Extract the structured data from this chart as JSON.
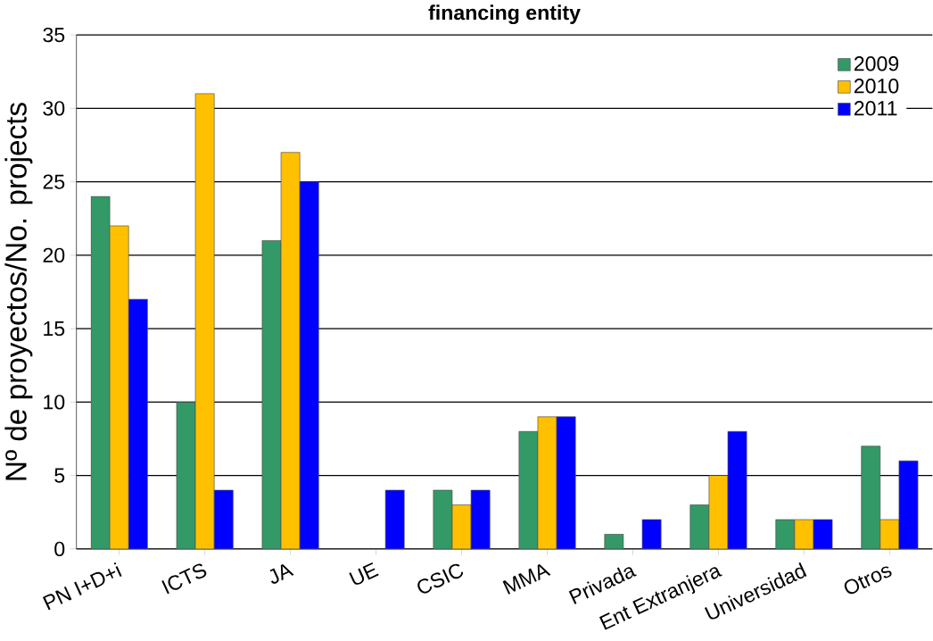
{
  "chart_data": {
    "type": "bar",
    "title": "financing entity",
    "ylabel": "Nº de proyectos/No. projects",
    "categories": [
      "PN I+D+i",
      "ICTS",
      "JA",
      "UE",
      "CSIC",
      "MMA",
      "Privada",
      "Ent Extranjera",
      "Universidad",
      "Otros"
    ],
    "series": [
      {
        "name": "2009",
        "color": "#339966",
        "values": [
          24,
          10,
          21,
          null,
          4,
          8,
          1,
          3,
          2,
          7
        ]
      },
      {
        "name": "2010",
        "color": "#ffc000",
        "values": [
          22,
          31,
          27,
          null,
          3,
          9,
          null,
          5,
          2,
          2
        ]
      },
      {
        "name": "2011",
        "color": "#0000ff",
        "values": [
          17,
          4,
          25,
          4,
          4,
          9,
          2,
          8,
          2,
          6
        ]
      }
    ],
    "ylim": [
      0,
      35
    ],
    "yticks": [
      0,
      5,
      10,
      15,
      20,
      25,
      30,
      35
    ],
    "grid": "y",
    "legend": "top right"
  }
}
